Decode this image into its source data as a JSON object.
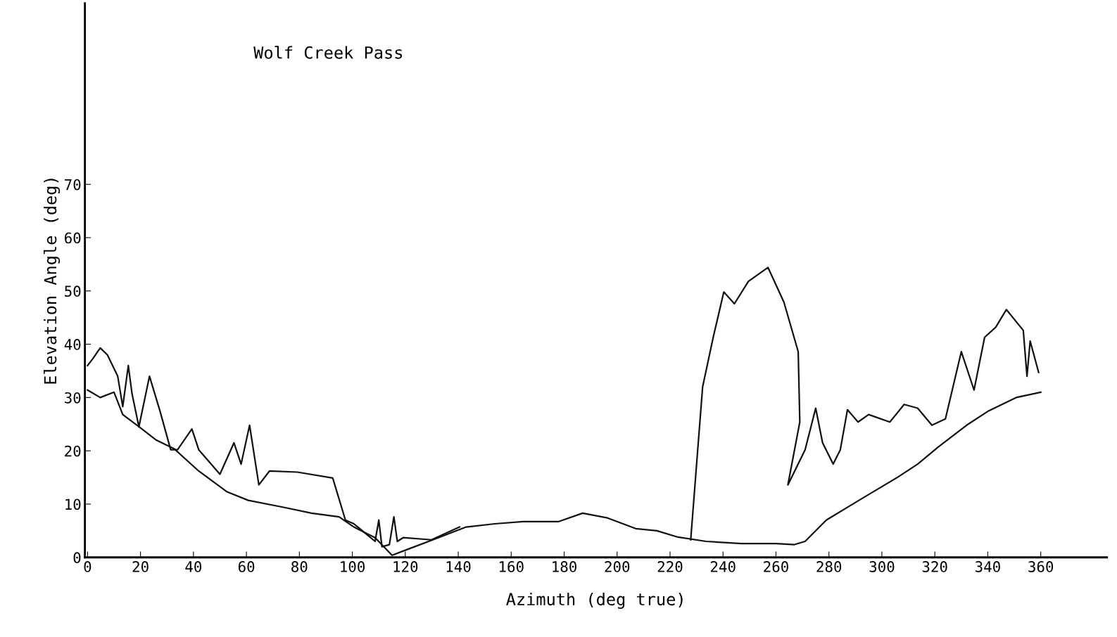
{
  "chart_data": {
    "type": "line",
    "title": "Wolf Creek Pass",
    "xlabel": "Azimuth (deg true)",
    "ylabel": "Elevation Angle (deg)",
    "xlim": [
      -1,
      385
    ],
    "ylim": [
      0,
      104
    ],
    "xticks": [
      0,
      20,
      40,
      60,
      80,
      100,
      120,
      140,
      160,
      180,
      200,
      220,
      240,
      260,
      280,
      300,
      320,
      340,
      360
    ],
    "yticks": [
      0,
      10,
      20,
      30,
      40,
      50,
      60,
      70
    ],
    "grid": false,
    "marker": "none",
    "line_style": "solid",
    "series": [
      {
        "color": "#111111",
        "x": [
          0,
          4.8,
          10,
          13.3,
          20.8,
          26,
          32.7,
          42,
          52.7,
          60.7,
          74,
          84.6,
          95,
          100.6,
          108.6,
          115,
          121.9,
          132.5,
          143,
          153.8,
          164.4,
          177.8,
          187,
          196.4,
          207,
          215,
          223,
          233.6,
          247,
          260,
          267,
          271,
          279,
          292,
          305.5,
          313.5,
          321.5,
          332,
          340,
          350.7,
          360
        ],
        "values": [
          31.4,
          30,
          31,
          26.8,
          24,
          22,
          20.4,
          16.2,
          12.3,
          10.7,
          9.4,
          8.3,
          7.6,
          5.7,
          3.7,
          0.4,
          1.7,
          3.7,
          5.7,
          6.3,
          6.7,
          6.7,
          8.3,
          7.4,
          5.4,
          5.0,
          3.8,
          3.0,
          2.6,
          2.6,
          2.4,
          3.0,
          7.0,
          10.9,
          14.9,
          17.5,
          20.8,
          24.8,
          27.4,
          30,
          31
        ]
      },
      {
        "color": "#111111",
        "x": [
          0,
          2,
          4.8,
          7.5,
          11.4,
          13.3,
          15.4,
          16.8,
          19.4,
          23.4,
          27.4,
          31.4,
          34,
          39.4,
          42,
          50,
          55.3,
          58,
          61.2,
          64.7,
          68.7,
          79.3,
          92.6,
          97.4,
          100.6,
          108.6,
          110,
          111.2,
          114,
          115.7,
          117,
          119.2,
          129.9,
          140.5,
          180,
          227.8,
          232.3,
          236.3,
          240.3,
          244.3,
          249.6,
          257,
          263,
          268.4,
          269,
          264.5,
          271,
          275,
          277.6,
          281.6,
          284.3,
          287,
          291,
          295,
          303,
          308.4,
          313.5,
          318.9,
          324,
          330,
          334.8,
          338.8,
          343,
          347,
          353.4,
          354.8,
          356,
          359.2
        ],
        "values": [
          36,
          37.3,
          39.3,
          38,
          34,
          28.3,
          36,
          30.7,
          24.5,
          34,
          27.4,
          20.2,
          20.2,
          24.1,
          20.2,
          15.6,
          21.5,
          17.5,
          24.8,
          13.6,
          16.2,
          16,
          14.9,
          7,
          6.3,
          3,
          7,
          2,
          2.4,
          7.6,
          3,
          3.7,
          3.3,
          5.7,
          null,
          3.3,
          32,
          41.3,
          49.8,
          47.6,
          51.8,
          54.4,
          47.9,
          38.6,
          25.4,
          13.6,
          20.2,
          28,
          21.5,
          17.5,
          20.2,
          27.7,
          25.4,
          26.8,
          25.4,
          28.7,
          28,
          24.8,
          26,
          38.6,
          31.4,
          41.3,
          43.2,
          46.5,
          42.6,
          34,
          40.6,
          34.7
        ]
      }
    ]
  }
}
